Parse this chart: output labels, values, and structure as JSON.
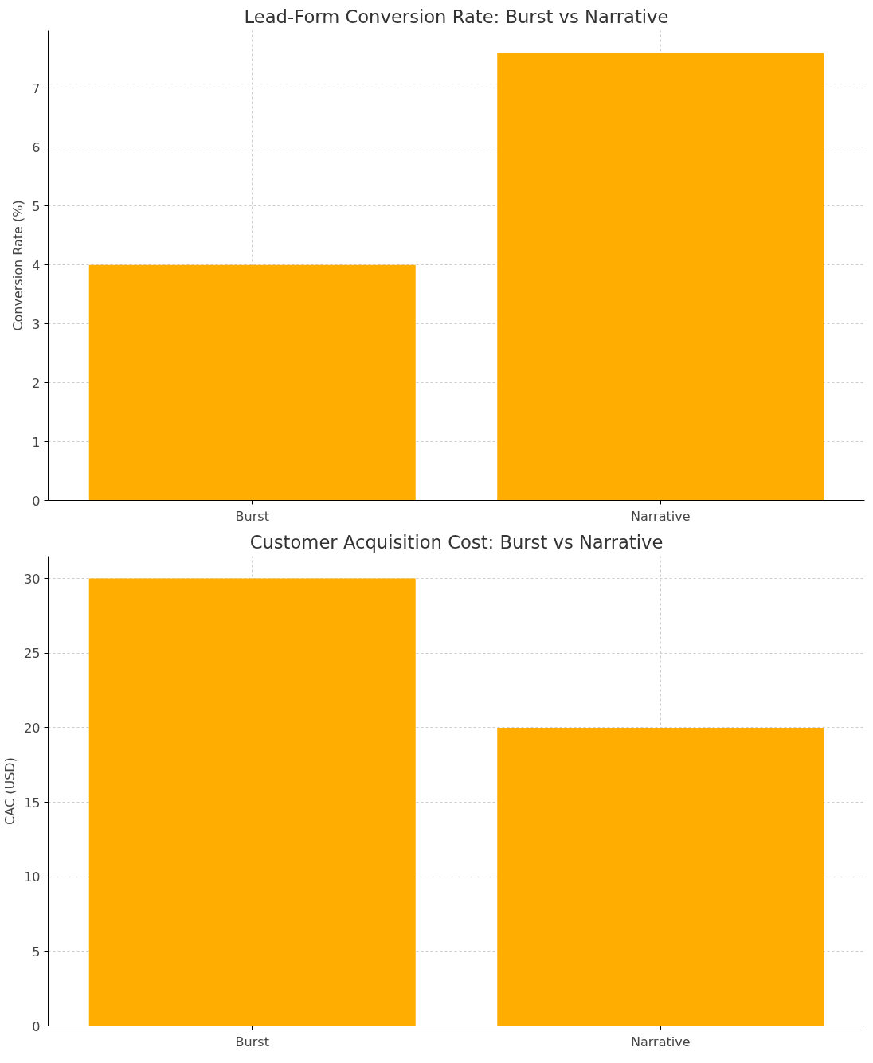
{
  "chart_data": [
    {
      "type": "bar",
      "title": "Lead-Form Conversion Rate: Burst vs Narrative",
      "ylabel": "Conversion Rate (%)",
      "categories": [
        "Burst",
        "Narrative"
      ],
      "values": [
        4.0,
        7.6
      ],
      "color": "#ffad00",
      "ylim": [
        0,
        7.98
      ],
      "yticks": [
        0,
        1,
        2,
        3,
        4,
        5,
        6,
        7
      ],
      "grid": true
    },
    {
      "type": "bar",
      "title": "Customer Acquisition Cost: Burst vs Narrative",
      "ylabel": "CAC (USD)",
      "categories": [
        "Burst",
        "Narrative"
      ],
      "values": [
        30,
        20
      ],
      "color": "#ffad00",
      "ylim": [
        0,
        31.5
      ],
      "yticks": [
        0,
        5,
        10,
        15,
        20,
        25,
        30
      ],
      "grid": true
    }
  ]
}
